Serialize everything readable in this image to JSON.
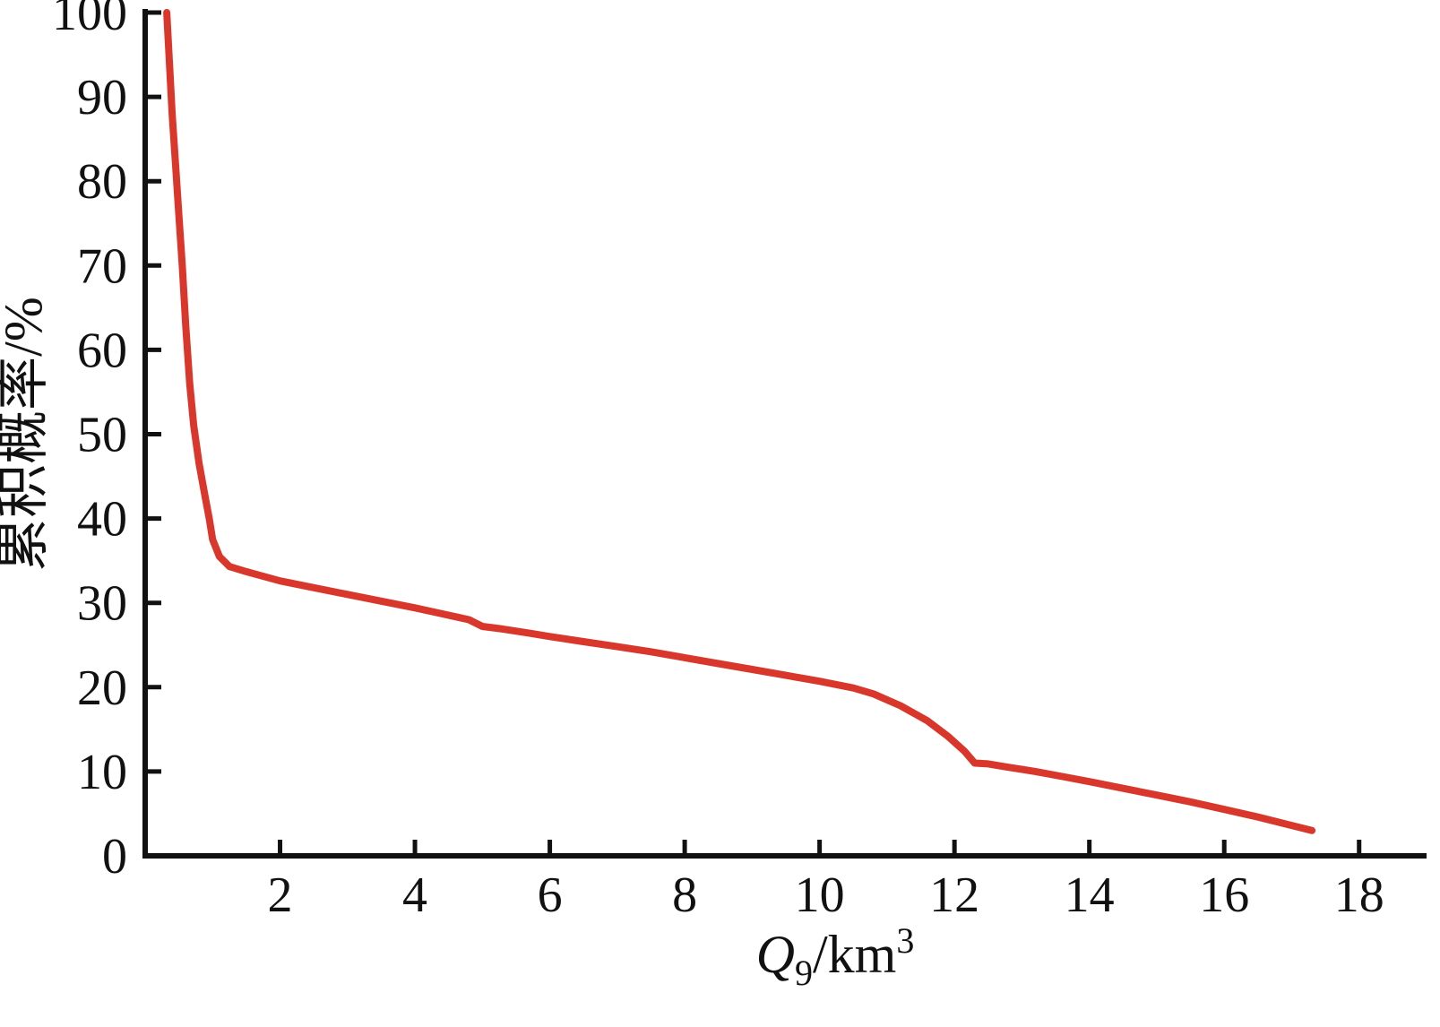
{
  "chart_data": {
    "type": "line",
    "title": "",
    "x_label": {
      "main": "Q",
      "sub": "9",
      "unit": "/km",
      "sup": "3",
      "plain": "Q9/km3"
    },
    "y_label": "累积概率/%",
    "x_ticks": [
      2,
      4,
      6,
      8,
      10,
      12,
      14,
      16,
      18
    ],
    "y_ticks": [
      0,
      10,
      20,
      30,
      40,
      50,
      60,
      70,
      80,
      90,
      100
    ],
    "xlim": [
      0,
      19
    ],
    "ylim": [
      0,
      100
    ],
    "grid": false,
    "legend_position": "none",
    "colors": {
      "curve": "#d9372b",
      "axis": "#111111"
    },
    "series": [
      {
        "name": "cumulative-probability-curve",
        "color": "#d9372b",
        "points": [
          [
            0.32,
            100
          ],
          [
            0.36,
            94
          ],
          [
            0.4,
            88
          ],
          [
            0.45,
            82
          ],
          [
            0.5,
            76
          ],
          [
            0.55,
            70
          ],
          [
            0.6,
            63
          ],
          [
            0.66,
            56
          ],
          [
            0.72,
            51
          ],
          [
            0.8,
            46.5
          ],
          [
            0.88,
            43
          ],
          [
            0.95,
            40
          ],
          [
            1.0,
            37.5
          ],
          [
            1.1,
            35.5
          ],
          [
            1.25,
            34.3
          ],
          [
            1.5,
            33.7
          ],
          [
            2.0,
            32.6
          ],
          [
            2.5,
            31.8
          ],
          [
            3.0,
            31.0
          ],
          [
            3.5,
            30.2
          ],
          [
            4.0,
            29.4
          ],
          [
            4.4,
            28.7
          ],
          [
            4.8,
            28.0
          ],
          [
            5.0,
            27.2
          ],
          [
            5.3,
            26.9
          ],
          [
            5.7,
            26.4
          ],
          [
            6.0,
            26.0
          ],
          [
            6.5,
            25.4
          ],
          [
            7.0,
            24.8
          ],
          [
            7.5,
            24.2
          ],
          [
            8.0,
            23.5
          ],
          [
            8.5,
            22.8
          ],
          [
            9.0,
            22.1
          ],
          [
            9.5,
            21.4
          ],
          [
            10.0,
            20.7
          ],
          [
            10.5,
            19.9
          ],
          [
            10.8,
            19.2
          ],
          [
            11.2,
            17.8
          ],
          [
            11.6,
            16.0
          ],
          [
            11.9,
            14.2
          ],
          [
            12.15,
            12.4
          ],
          [
            12.3,
            11.0
          ],
          [
            12.5,
            10.9
          ],
          [
            12.8,
            10.5
          ],
          [
            13.2,
            10.0
          ],
          [
            13.6,
            9.4
          ],
          [
            14.0,
            8.8
          ],
          [
            14.5,
            8.0
          ],
          [
            15.0,
            7.2
          ],
          [
            15.5,
            6.4
          ],
          [
            16.0,
            5.5
          ],
          [
            16.5,
            4.6
          ],
          [
            17.0,
            3.6
          ],
          [
            17.3,
            3.0
          ]
        ]
      }
    ]
  }
}
